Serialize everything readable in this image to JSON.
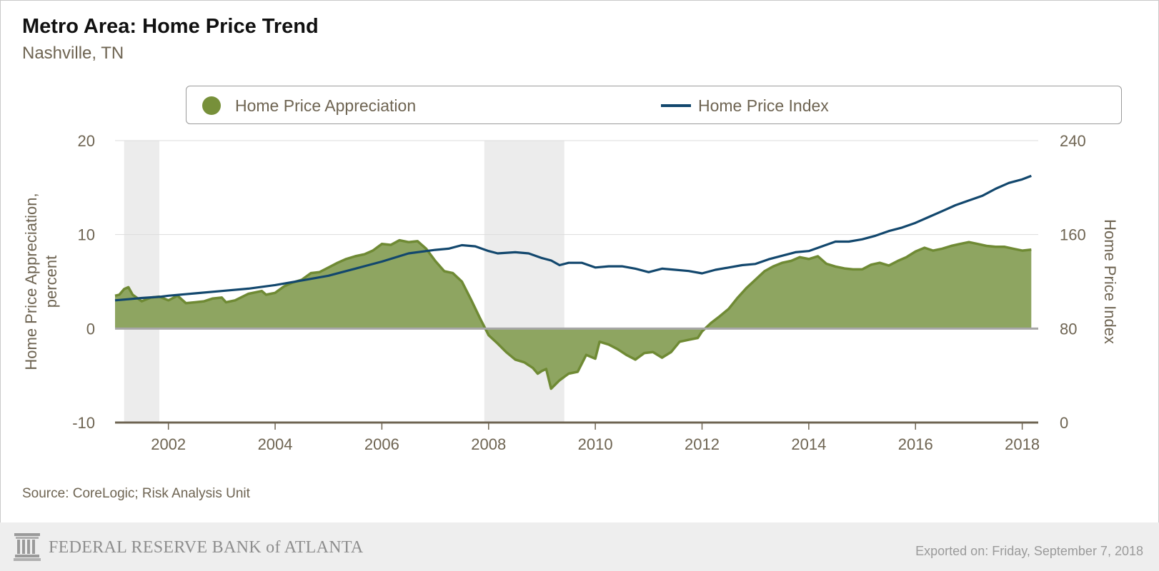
{
  "header": {
    "title": "Metro Area: Home Price Trend",
    "subtitle": "Nashville, TN"
  },
  "legend": {
    "items": [
      {
        "label": "Home Price Appreciation",
        "color": "#77903a",
        "shape": "circle"
      },
      {
        "label": "Home Price Index",
        "color": "#12476d",
        "shape": "line"
      }
    ]
  },
  "source_text": "Source: CoreLogic; Risk Analysis Unit",
  "footer": {
    "organization": "FEDERAL RESERVE BANK of ATLANTA",
    "exported": "Exported on: Friday, September 7, 2018",
    "logo_icon": "fed-building-icon"
  },
  "colors": {
    "appreciation_fill": "#8ea561",
    "appreciation_line": "#6f8a34",
    "index_line": "#12476d",
    "recession_shade": "#ececec",
    "zero_line": "#a6a6a6",
    "axis_base": "#6e6452",
    "grid": "#dddddd",
    "label_text": "#6e6452"
  },
  "chart_data": {
    "type": "area",
    "xlim": [
      2001.0,
      2018.3
    ],
    "x_ticks": [
      "2002",
      "2004",
      "2006",
      "2008",
      "2010",
      "2012",
      "2014",
      "2016",
      "2018"
    ],
    "y_left": {
      "label": "Home Price Appreciation, percent",
      "lim": [
        -10,
        20
      ],
      "ticks": [
        "20",
        "10",
        "0",
        "-10"
      ]
    },
    "y_right": {
      "label": "Home Price Index",
      "lim": [
        0,
        240
      ],
      "ticks": [
        "240",
        "160",
        "80",
        "0"
      ]
    },
    "grid": true,
    "legend_position": "top",
    "recessions": [
      [
        2001.17,
        2001.83
      ],
      [
        2007.92,
        2009.42
      ]
    ],
    "series": [
      {
        "name": "Home Price Appreciation",
        "type": "area",
        "axis": "left",
        "points": [
          [
            2001.0,
            3.5
          ],
          [
            2001.08,
            3.6
          ],
          [
            2001.17,
            4.2
          ],
          [
            2001.25,
            4.4
          ],
          [
            2001.33,
            3.6
          ],
          [
            2001.5,
            2.9
          ],
          [
            2001.67,
            3.3
          ],
          [
            2001.83,
            3.4
          ],
          [
            2002.0,
            3.0
          ],
          [
            2002.17,
            3.5
          ],
          [
            2002.33,
            2.7
          ],
          [
            2002.5,
            2.8
          ],
          [
            2002.67,
            2.9
          ],
          [
            2002.83,
            3.2
          ],
          [
            2003.0,
            3.3
          ],
          [
            2003.08,
            2.8
          ],
          [
            2003.25,
            3.0
          ],
          [
            2003.5,
            3.7
          ],
          [
            2003.75,
            4.0
          ],
          [
            2003.83,
            3.6
          ],
          [
            2004.0,
            3.8
          ],
          [
            2004.17,
            4.5
          ],
          [
            2004.33,
            4.9
          ],
          [
            2004.5,
            5.2
          ],
          [
            2004.67,
            5.9
          ],
          [
            2004.83,
            6.0
          ],
          [
            2005.0,
            6.5
          ],
          [
            2005.17,
            7.0
          ],
          [
            2005.33,
            7.4
          ],
          [
            2005.5,
            7.7
          ],
          [
            2005.67,
            7.9
          ],
          [
            2005.83,
            8.3
          ],
          [
            2006.0,
            9.0
          ],
          [
            2006.17,
            8.9
          ],
          [
            2006.33,
            9.4
          ],
          [
            2006.5,
            9.2
          ],
          [
            2006.67,
            9.3
          ],
          [
            2006.83,
            8.5
          ],
          [
            2007.0,
            7.2
          ],
          [
            2007.17,
            6.1
          ],
          [
            2007.33,
            5.9
          ],
          [
            2007.5,
            5.0
          ],
          [
            2007.67,
            3.1
          ],
          [
            2007.83,
            1.2
          ],
          [
            2008.0,
            -0.7
          ],
          [
            2008.17,
            -1.6
          ],
          [
            2008.33,
            -2.5
          ],
          [
            2008.5,
            -3.3
          ],
          [
            2008.67,
            -3.6
          ],
          [
            2008.83,
            -4.2
          ],
          [
            2008.92,
            -4.8
          ],
          [
            2009.0,
            -4.5
          ],
          [
            2009.08,
            -4.3
          ],
          [
            2009.17,
            -6.4
          ],
          [
            2009.33,
            -5.5
          ],
          [
            2009.5,
            -4.8
          ],
          [
            2009.67,
            -4.6
          ],
          [
            2009.83,
            -2.8
          ],
          [
            2010.0,
            -3.2
          ],
          [
            2010.08,
            -1.4
          ],
          [
            2010.25,
            -1.7
          ],
          [
            2010.42,
            -2.2
          ],
          [
            2010.58,
            -2.8
          ],
          [
            2010.75,
            -3.3
          ],
          [
            2010.92,
            -2.6
          ],
          [
            2011.08,
            -2.5
          ],
          [
            2011.25,
            -3.1
          ],
          [
            2011.42,
            -2.5
          ],
          [
            2011.58,
            -1.4
          ],
          [
            2011.75,
            -1.2
          ],
          [
            2011.92,
            -1.0
          ],
          [
            2012.0,
            -0.3
          ],
          [
            2012.17,
            0.6
          ],
          [
            2012.33,
            1.3
          ],
          [
            2012.5,
            2.1
          ],
          [
            2012.67,
            3.3
          ],
          [
            2012.83,
            4.3
          ],
          [
            2013.0,
            5.2
          ],
          [
            2013.17,
            6.1
          ],
          [
            2013.33,
            6.6
          ],
          [
            2013.5,
            7.0
          ],
          [
            2013.67,
            7.2
          ],
          [
            2013.83,
            7.6
          ],
          [
            2014.0,
            7.4
          ],
          [
            2014.17,
            7.7
          ],
          [
            2014.33,
            6.9
          ],
          [
            2014.5,
            6.6
          ],
          [
            2014.67,
            6.4
          ],
          [
            2014.83,
            6.3
          ],
          [
            2015.0,
            6.3
          ],
          [
            2015.17,
            6.8
          ],
          [
            2015.33,
            7.0
          ],
          [
            2015.5,
            6.7
          ],
          [
            2015.67,
            7.2
          ],
          [
            2015.83,
            7.6
          ],
          [
            2016.0,
            8.2
          ],
          [
            2016.17,
            8.6
          ],
          [
            2016.33,
            8.3
          ],
          [
            2016.5,
            8.5
          ],
          [
            2016.67,
            8.8
          ],
          [
            2016.83,
            9.0
          ],
          [
            2017.0,
            9.2
          ],
          [
            2017.17,
            9.0
          ],
          [
            2017.33,
            8.8
          ],
          [
            2017.5,
            8.7
          ],
          [
            2017.67,
            8.7
          ],
          [
            2017.83,
            8.5
          ],
          [
            2018.0,
            8.3
          ],
          [
            2018.17,
            8.4
          ]
        ]
      },
      {
        "name": "Home Price Index",
        "type": "line",
        "axis": "right",
        "points": [
          [
            2001.0,
            104
          ],
          [
            2001.25,
            105
          ],
          [
            2001.5,
            106
          ],
          [
            2001.83,
            107
          ],
          [
            2002.0,
            108
          ],
          [
            2002.5,
            110
          ],
          [
            2003.0,
            112
          ],
          [
            2003.5,
            114
          ],
          [
            2004.0,
            117
          ],
          [
            2004.5,
            121
          ],
          [
            2005.0,
            125
          ],
          [
            2005.5,
            131
          ],
          [
            2006.0,
            137
          ],
          [
            2006.5,
            144
          ],
          [
            2007.0,
            147
          ],
          [
            2007.25,
            148
          ],
          [
            2007.5,
            151
          ],
          [
            2007.75,
            150
          ],
          [
            2008.0,
            146
          ],
          [
            2008.17,
            144
          ],
          [
            2008.5,
            145
          ],
          [
            2008.75,
            144
          ],
          [
            2009.0,
            140
          ],
          [
            2009.17,
            138
          ],
          [
            2009.33,
            134
          ],
          [
            2009.5,
            136
          ],
          [
            2009.75,
            136
          ],
          [
            2010.0,
            132
          ],
          [
            2010.25,
            133
          ],
          [
            2010.5,
            133
          ],
          [
            2010.75,
            131
          ],
          [
            2011.0,
            128
          ],
          [
            2011.25,
            131
          ],
          [
            2011.5,
            130
          ],
          [
            2011.75,
            129
          ],
          [
            2012.0,
            127
          ],
          [
            2012.25,
            130
          ],
          [
            2012.5,
            132
          ],
          [
            2012.75,
            134
          ],
          [
            2013.0,
            135
          ],
          [
            2013.25,
            139
          ],
          [
            2013.5,
            142
          ],
          [
            2013.75,
            145
          ],
          [
            2014.0,
            146
          ],
          [
            2014.25,
            150
          ],
          [
            2014.5,
            154
          ],
          [
            2014.75,
            154
          ],
          [
            2015.0,
            156
          ],
          [
            2015.25,
            159
          ],
          [
            2015.5,
            163
          ],
          [
            2015.75,
            166
          ],
          [
            2016.0,
            170
          ],
          [
            2016.25,
            175
          ],
          [
            2016.5,
            180
          ],
          [
            2016.75,
            185
          ],
          [
            2017.0,
            189
          ],
          [
            2017.25,
            193
          ],
          [
            2017.5,
            199
          ],
          [
            2017.75,
            204
          ],
          [
            2018.0,
            207
          ],
          [
            2018.17,
            210
          ]
        ]
      }
    ]
  }
}
